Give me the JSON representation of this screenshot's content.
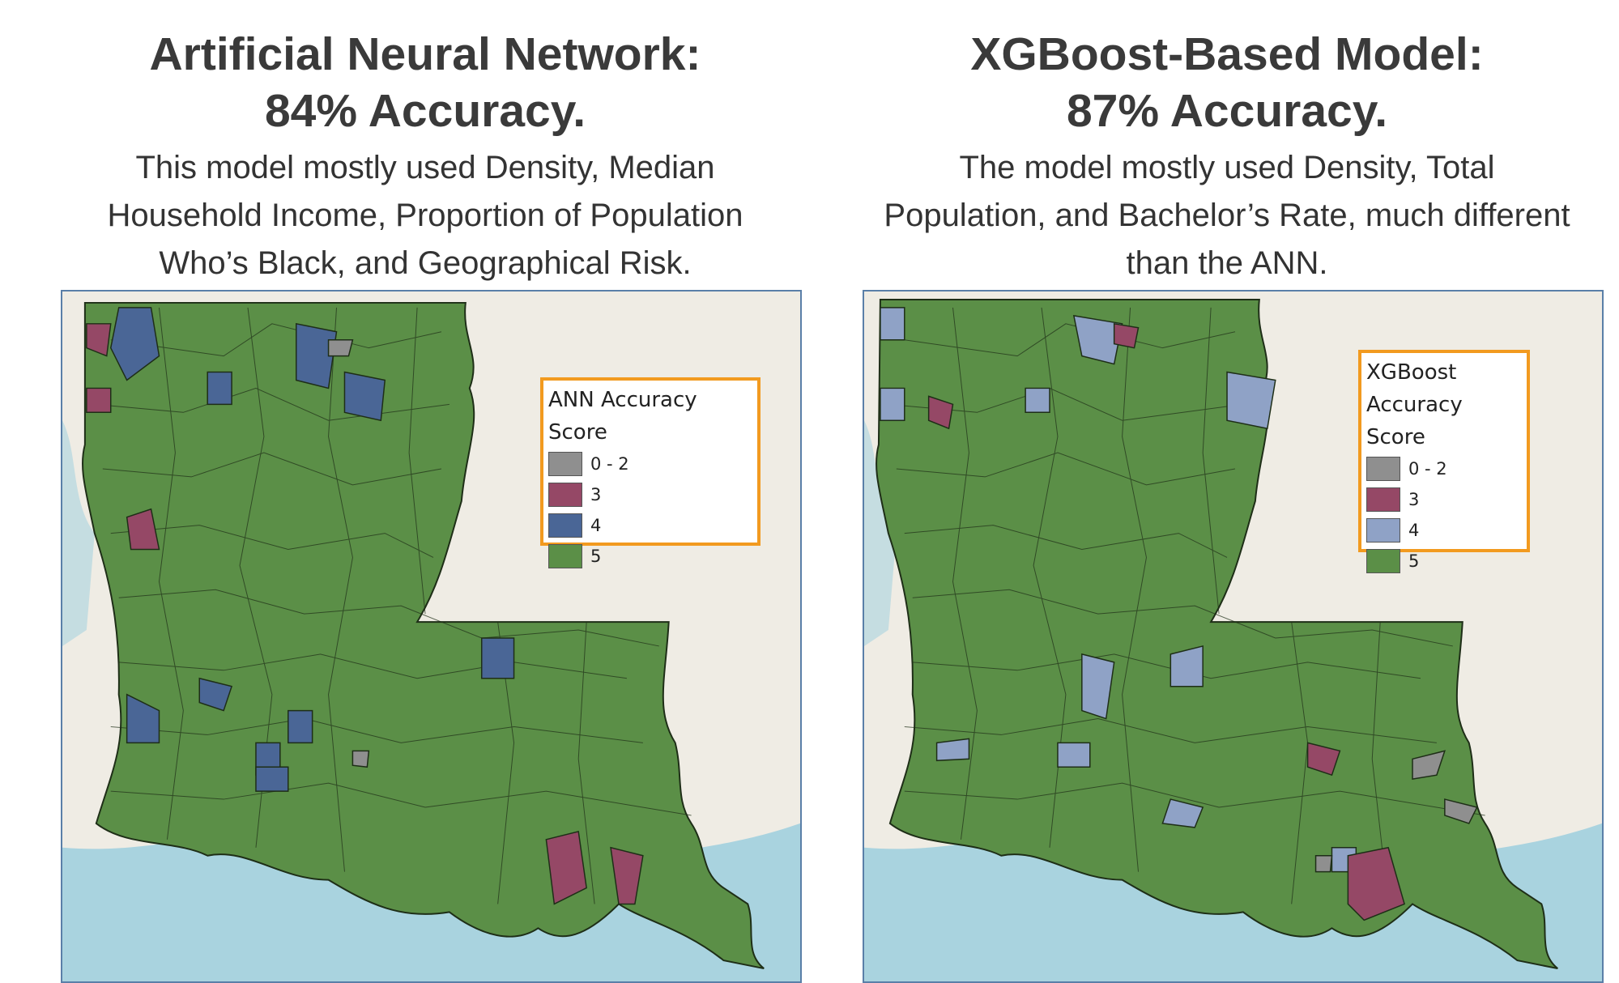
{
  "panels": [
    {
      "title_line1": "Artificial Neural Network:",
      "title_line2": "84% Accuracy.",
      "description": "This model mostly used Density, Median Household Income, Proportion of Population Who’s Black, and Geographical Risk.",
      "legend": {
        "title": "ANN Accuracy Score",
        "items": [
          {
            "label": "0 - 2",
            "color": "#8f8f8f"
          },
          {
            "label": "3",
            "color": "#954866"
          },
          {
            "label": "4",
            "color": "#4a6696"
          },
          {
            "label": "5",
            "color": "#5b8f47"
          }
        ]
      }
    },
    {
      "title_line1": "XGBoost-Based Model:",
      "title_line2": "87% Accuracy.",
      "description": "The model mostly used Density, Total Population, and Bachelor’s Rate, much different than the ANN.",
      "legend": {
        "title": "XGBoost Accuracy Score",
        "items": [
          {
            "label": "0 - 2",
            "color": "#8f8f8f"
          },
          {
            "label": "3",
            "color": "#954866"
          },
          {
            "label": "4",
            "color": "#8fa2c6"
          },
          {
            "label": "5",
            "color": "#5b8f47"
          }
        ]
      }
    }
  ],
  "colors": {
    "water": "#a9d3df",
    "land_background": "#efece4",
    "legend_border": "#f29a1f",
    "map_border": "#5a7fa8"
  }
}
